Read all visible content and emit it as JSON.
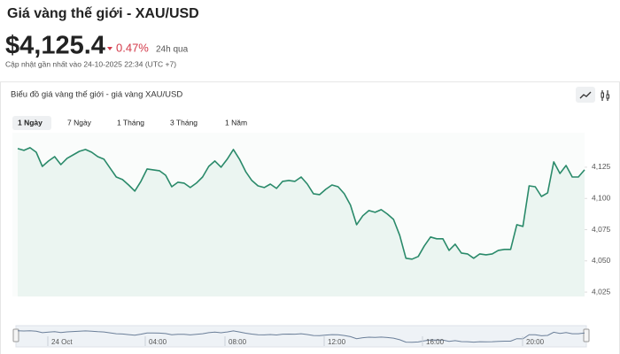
{
  "header": {
    "title": "Giá vàng thế giới - XAU/USD",
    "price": "$4,125.4",
    "change": "0.47%",
    "change_period": "24h qua",
    "updated": "Cập nhật gần nhất vào 24-10-2025 22:34 (UTC +7)"
  },
  "chart_data": {
    "type": "line",
    "title": "Biểu đồ giá vàng thế giới - giá vàng XAU/USD",
    "tabs": [
      "1 Ngày",
      "7 Ngày",
      "1 Tháng",
      "3 Tháng",
      "1 Năm"
    ],
    "color": "#2a8a6a",
    "ylim": [
      4021.5,
      4152.6
    ],
    "yticks": [
      {
        "value": 4025,
        "label": "4,025"
      },
      {
        "value": 4050,
        "label": "4,050"
      },
      {
        "value": 4075,
        "label": "4,075"
      },
      {
        "value": 4100,
        "label": "4,100"
      },
      {
        "value": 4125,
        "label": "4,125"
      }
    ],
    "navigator_labels": [
      "24 Oct",
      "04:00",
      "08:00",
      "12:00",
      "16:00",
      "20:00"
    ],
    "values": [
      4139.9,
      4138.5,
      4140.6,
      4137.0,
      4125.7,
      4130.0,
      4133.5,
      4127.1,
      4132.1,
      4134.9,
      4137.7,
      4139.2,
      4137.0,
      4133.5,
      4131.4,
      4124.3,
      4117.2,
      4115.1,
      4110.8,
      4105.9,
      4113.7,
      4123.6,
      4122.9,
      4122.2,
      4118.6,
      4109.4,
      4113.0,
      4112.3,
      4108.7,
      4112.3,
      4117.2,
      4125.7,
      4130.0,
      4125.0,
      4131.4,
      4139.2,
      4131.4,
      4121.5,
      4114.4,
      4110.1,
      4108.7,
      4111.5,
      4108.0,
      4113.7,
      4114.4,
      4113.7,
      4117.2,
      4111.5,
      4103.8,
      4103.1,
      4107.3,
      4110.8,
      4109.4,
      4103.8,
      4094.6,
      4079.0,
      4086.1,
      4090.3,
      4088.9,
      4091.0,
      4087.5,
      4083.2,
      4070.5,
      4052.1,
      4051.4,
      4053.5,
      4062.0,
      4069.1,
      4067.7,
      4067.7,
      4058.4,
      4063.4,
      4056.3,
      4055.6,
      4052.1,
      4055.6,
      4054.9,
      4055.6,
      4058.4,
      4059.2,
      4059.2,
      4079.0,
      4077.6,
      4110.1,
      4109.4,
      4101.6,
      4104.5,
      4129.3,
      4120.0,
      4126.4,
      4117.2,
      4117.2,
      4122.9
    ]
  }
}
